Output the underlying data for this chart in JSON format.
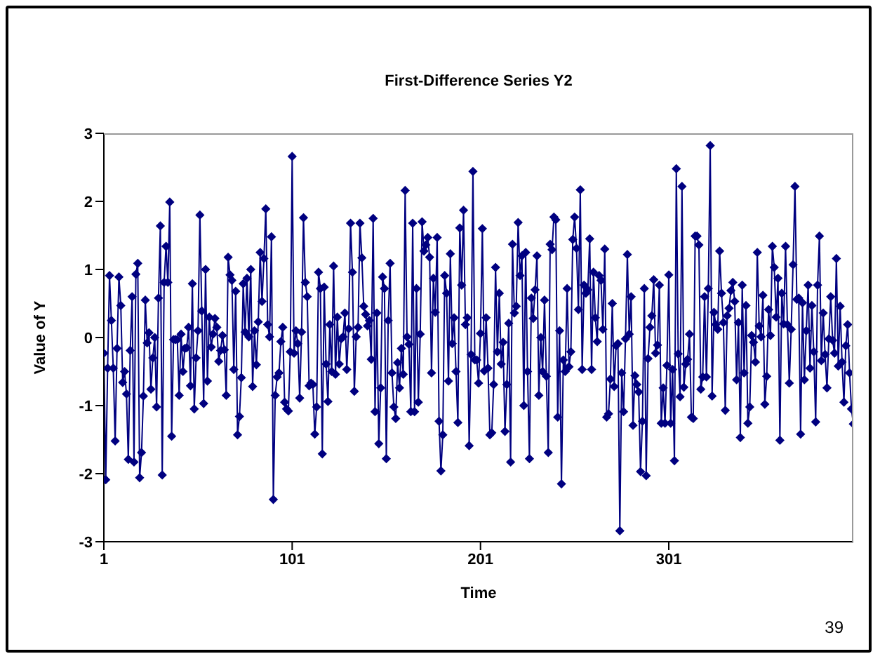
{
  "chart_data": {
    "type": "line",
    "title": "First-Difference Series Y2",
    "xlabel": "Time",
    "ylabel": "Value of Y",
    "annotations": [
      "39"
    ],
    "xlim": [
      1,
      399
    ],
    "xticks": [
      1,
      101,
      201,
      301
    ],
    "ylim": [
      -3,
      3
    ],
    "yticks": [
      -3,
      -2,
      -1,
      0,
      1,
      2,
      3
    ],
    "grid": false,
    "legend": false,
    "marker": "diamond",
    "line_style": "solid",
    "x": [
      1,
      2,
      3,
      4,
      5,
      6,
      7,
      8,
      9,
      10,
      11,
      12,
      13,
      14,
      15,
      16,
      17,
      18,
      19,
      20,
      21,
      22,
      23,
      24,
      25,
      26,
      27,
      28,
      29,
      30,
      31,
      32,
      33,
      34,
      35,
      36,
      37,
      38,
      39,
      40,
      41,
      42,
      43,
      44,
      45,
      46,
      47,
      48,
      49,
      50,
      51,
      52,
      53,
      54,
      55,
      56,
      57,
      58,
      59,
      60,
      61,
      62,
      63,
      64,
      65,
      66,
      67,
      68,
      69,
      70,
      71,
      72,
      73,
      74,
      75,
      76,
      77,
      78,
      79,
      80,
      81,
      82,
      83,
      84,
      85,
      86,
      87,
      88,
      89,
      90,
      91,
      92,
      93,
      94,
      95,
      96,
      97,
      98,
      99,
      100,
      101,
      102,
      103,
      104,
      105,
      106,
      107,
      108,
      109,
      110,
      111,
      112,
      113,
      114,
      115,
      116,
      117,
      118,
      119,
      120,
      121,
      122,
      123,
      124,
      125,
      126,
      127,
      128,
      129,
      130,
      131,
      132,
      133,
      134,
      135,
      136,
      137,
      138,
      139,
      140,
      141,
      142,
      143,
      144,
      145,
      146,
      147,
      148,
      149,
      150,
      151,
      152,
      153,
      154,
      155,
      156,
      157,
      158,
      159,
      160,
      161,
      162,
      163,
      164,
      165,
      166,
      167,
      168,
      169,
      170,
      171,
      172,
      173,
      174,
      175,
      176,
      177,
      178,
      179,
      180,
      181,
      182,
      183,
      184,
      185,
      186,
      187,
      188,
      189,
      190,
      191,
      192,
      193,
      194,
      195,
      196,
      197,
      198,
      199,
      200,
      201,
      202,
      203,
      204,
      205,
      206,
      207,
      208,
      209,
      210,
      211,
      212,
      213,
      214,
      215,
      216,
      217,
      218,
      219,
      220,
      221,
      222,
      223,
      224,
      225,
      226,
      227,
      228,
      229,
      230,
      231,
      232,
      233,
      234,
      235,
      236,
      237,
      238,
      239,
      240,
      241,
      242,
      243,
      244,
      245,
      246,
      247,
      248,
      249,
      250,
      251,
      252,
      253,
      254,
      255,
      256,
      257,
      258,
      259,
      260,
      261,
      262,
      263,
      264,
      265,
      266,
      267,
      268,
      269,
      270,
      271,
      272,
      273,
      274,
      275,
      276,
      277,
      278,
      279,
      280,
      281,
      282,
      283,
      284,
      285,
      286,
      287,
      288,
      289,
      290,
      291,
      292,
      293,
      294,
      295,
      296,
      297,
      298,
      299,
      300,
      301,
      302,
      303,
      304,
      305,
      306,
      307,
      308,
      309,
      310,
      311,
      312,
      313,
      314,
      315,
      316,
      317,
      318,
      319,
      320,
      321,
      322,
      323,
      324,
      325,
      326,
      327,
      328,
      329,
      330,
      331,
      332,
      333,
      334,
      335,
      336,
      337,
      338,
      339,
      340,
      341,
      342,
      343,
      344,
      345,
      346,
      347,
      348,
      349,
      350,
      351,
      352,
      353,
      354,
      355,
      356,
      357,
      358,
      359,
      360,
      361,
      362,
      363,
      364,
      365,
      366,
      367,
      368,
      369,
      370,
      371,
      372,
      373,
      374,
      375,
      376,
      377,
      378,
      379,
      380,
      381,
      382,
      383,
      384,
      385,
      386,
      387,
      388,
      389,
      390,
      391,
      392,
      393,
      394,
      395,
      396,
      397,
      398,
      399
    ],
    "series": [
      {
        "color": "#000080",
        "values": [
          -0.23,
          -2.09,
          -0.45,
          0.91,
          0.25,
          -0.45,
          -1.52,
          -0.16,
          0.89,
          0.47,
          -0.66,
          -0.5,
          -0.83,
          -1.79,
          -0.19,
          0.6,
          -1.83,
          0.93,
          1.09,
          -2.06,
          -1.69,
          -0.86,
          0.55,
          -0.08,
          0.07,
          -0.76,
          -0.3,
          0,
          -1.02,
          0.58,
          1.64,
          -2.02,
          0.81,
          1.34,
          0.81,
          1.99,
          -1.45,
          -0.03,
          -0.03,
          -0.03,
          -0.85,
          0.05,
          -0.5,
          -0.16,
          -0.15,
          0.15,
          -0.71,
          0.79,
          -1.05,
          -0.3,
          0.1,
          1.8,
          0.39,
          -0.97,
          1,
          -0.64,
          0.3,
          -0.14,
          0.05,
          0.28,
          0.15,
          -0.35,
          -0.19,
          0.03,
          -0.18,
          -0.85,
          1.18,
          0.92,
          0.84,
          -0.47,
          0.68,
          -1.43,
          -1.16,
          -0.59,
          0.79,
          0.08,
          0.87,
          0.01,
          1,
          -0.72,
          0.1,
          -0.4,
          0.23,
          1.25,
          0.53,
          1.16,
          1.89,
          0.19,
          0.01,
          1.48,
          -2.38,
          -0.85,
          -0.58,
          -0.52,
          -0.06,
          0.15,
          -0.95,
          -1.05,
          -1.08,
          -0.21,
          2.66,
          -0.23,
          0.1,
          -0.09,
          -0.89,
          0.08,
          1.76,
          0.81,
          0.6,
          -0.71,
          -0.67,
          -0.69,
          -1.42,
          -1.02,
          0.96,
          0.72,
          -1.71,
          0.74,
          -0.39,
          -0.94,
          0.19,
          -0.5,
          1.05,
          -0.54,
          0.3,
          -0.39,
          -0.02,
          0.01,
          0.36,
          -0.47,
          0.13,
          1.68,
          0.96,
          -0.79,
          0.01,
          0.15,
          1.68,
          1.17,
          0.46,
          0.34,
          0.17,
          0.25,
          -0.32,
          1.75,
          -1.09,
          0.36,
          -1.56,
          -0.74,
          0.89,
          0.72,
          -1.78,
          0.25,
          1.09,
          -0.52,
          -1.02,
          -1.19,
          -0.37,
          -0.74,
          -0.16,
          -0.54,
          2.16,
          0.01,
          -0.1,
          -1.09,
          1.68,
          -1.09,
          0.72,
          -0.95,
          0.05,
          1.7,
          1.27,
          1.36,
          1.47,
          1.18,
          -0.52,
          0.87,
          0.37,
          1.47,
          -1.23,
          -1.96,
          -1.43,
          0.91,
          0.65,
          -0.64,
          1.23,
          -0.09,
          0.29,
          -0.5,
          -1.25,
          1.61,
          0.77,
          1.87,
          0.19,
          0.29,
          -1.59,
          -0.25,
          2.44,
          -0.33,
          -0.33,
          -0.67,
          0.06,
          1.6,
          -0.49,
          0.29,
          -0.45,
          -1.43,
          -1.4,
          -0.69,
          1.03,
          -0.21,
          0.65,
          -0.39,
          -0.07,
          -1.38,
          -0.69,
          0.21,
          -1.83,
          1.37,
          0.36,
          0.46,
          1.69,
          0.91,
          1.2,
          -1,
          1.25,
          -0.5,
          -1.78,
          0.58,
          0.28,
          0.7,
          1.2,
          -0.85,
          0,
          -0.5,
          0.55,
          -0.57,
          -1.69,
          1.37,
          1.29,
          1.77,
          1.73,
          -1.17,
          0.1,
          -2.15,
          -0.33,
          -0.5,
          0.72,
          -0.43,
          -0.21,
          1.44,
          1.77,
          1.31,
          0.41,
          2.17,
          -0.47,
          0.77,
          0.65,
          0.7,
          1.45,
          -0.47,
          0.96,
          0.29,
          -0.06,
          0.91,
          0.84,
          0.12,
          1.3,
          -1.17,
          -1.12,
          -0.61,
          0.5,
          -0.72,
          -0.12,
          -0.09,
          -2.84,
          -0.52,
          -1.09,
          -0.02,
          1.22,
          0.05,
          0.6,
          -1.29,
          -0.56,
          -0.69,
          -0.8,
          -1.97,
          -1.23,
          0.72,
          -2.03,
          -0.31,
          0.15,
          0.32,
          0.85,
          -0.23,
          -0.11,
          0.77,
          -1.26,
          -0.74,
          -1.26,
          -0.41,
          0.92,
          -1.26,
          -0.47,
          -1.81,
          2.48,
          -0.24,
          -0.87,
          2.22,
          -0.73,
          -0.39,
          -0.32,
          0.05,
          -1.17,
          -1.19,
          1.49,
          1.49,
          1.36,
          -0.76,
          -0.58,
          0.6,
          -0.58,
          0.72,
          2.82,
          -0.86,
          0.37,
          0.19,
          0.12,
          1.27,
          0.65,
          0.22,
          -1.07,
          0.32,
          0.43,
          0.69,
          0.81,
          0.53,
          -0.62,
          0.22,
          -1.47,
          0.77,
          -0.52,
          0.47,
          -1.26,
          -1.02,
          0.03,
          -0.07,
          -0.36,
          1.25,
          0.17,
          0.01,
          0.62,
          -0.98,
          -0.57,
          0.41,
          0.03,
          1.34,
          1.03,
          0.3,
          0.87,
          -1.51,
          0.65,
          0.2,
          1.34,
          0.19,
          -0.67,
          0.12,
          1.07,
          2.22,
          0.56,
          0.58,
          -1.42,
          0.51,
          -0.62,
          0.1,
          0.77,
          -0.45,
          0.47,
          -0.21,
          -1.24,
          0.77,
          1.49,
          -0.34,
          0.36,
          -0.25,
          -0.74,
          -0.02,
          0.6,
          -0.04,
          -0.23,
          1.16,
          -0.42,
          0.46,
          -0.36,
          -0.95,
          -0.12,
          0.19,
          -0.52,
          -1.05,
          -1.27
        ]
      }
    ]
  }
}
